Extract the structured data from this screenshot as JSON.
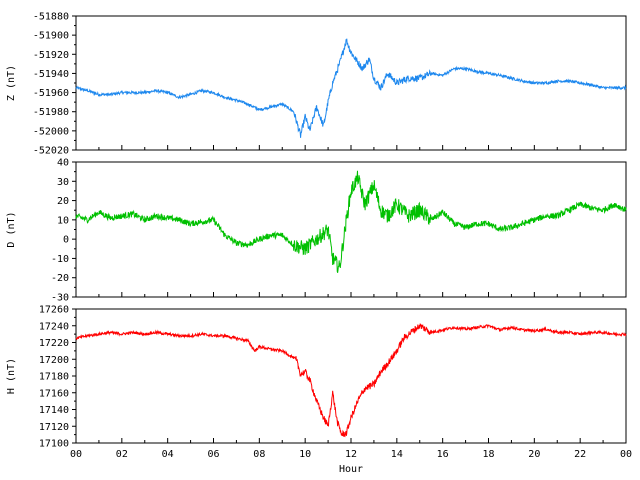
{
  "chart_data": [
    {
      "type": "line",
      "ylabel": "Z (nT)",
      "ylim": [
        -52020,
        -51880
      ],
      "yticks": [
        -51880,
        -51900,
        -51920,
        -51940,
        -51960,
        -51980,
        -52000,
        -52020
      ],
      "color": "#1e88ee",
      "series": [
        {
          "x": [
            0,
            0.5,
            1,
            1.5,
            2,
            2.5,
            3,
            3.5,
            4,
            4.5,
            5,
            5.5,
            6,
            6.5,
            7,
            7.5,
            8,
            8.5,
            9,
            9.5,
            9.8,
            10,
            10.2,
            10.5,
            10.8,
            11,
            11.2,
            11.5,
            11.8,
            12,
            12.2,
            12.5,
            12.8,
            13,
            13.3,
            13.6,
            14,
            14.5,
            15,
            15.5,
            16,
            16.5,
            17,
            17.5,
            18,
            18.5,
            19,
            19.5,
            20,
            20.5,
            21,
            21.5,
            22,
            22.5,
            23,
            23.5,
            24
          ],
          "y": [
            -51955,
            -51958,
            -51962,
            -51962,
            -51960,
            -51960,
            -51960,
            -51958,
            -51960,
            -51965,
            -51962,
            -51958,
            -51960,
            -51965,
            -51968,
            -51972,
            -51978,
            -51975,
            -51972,
            -51980,
            -52005,
            -51985,
            -52000,
            -51975,
            -51995,
            -51970,
            -51950,
            -51930,
            -51905,
            -51918,
            -51925,
            -51935,
            -51925,
            -51945,
            -51955,
            -51940,
            -51950,
            -51945,
            -51945,
            -51940,
            -51942,
            -51935,
            -51935,
            -51938,
            -51940,
            -51942,
            -51945,
            -51948,
            -51950,
            -51950,
            -51948,
            -51948,
            -51950,
            -51952,
            -51955,
            -51955,
            -51955
          ]
        }
      ]
    },
    {
      "type": "line",
      "ylabel": "D (nT)",
      "ylim": [
        -30,
        40
      ],
      "yticks": [
        40,
        30,
        20,
        10,
        0,
        -10,
        -20,
        -30
      ],
      "color": "#00c000",
      "series": [
        {
          "x": [
            0,
            0.5,
            1,
            1.5,
            2,
            2.5,
            3,
            3.5,
            4,
            4.5,
            5,
            5.5,
            6,
            6.5,
            7,
            7.5,
            8,
            8.5,
            9,
            9.5,
            10,
            10.5,
            11,
            11.2,
            11.5,
            11.8,
            12,
            12.3,
            12.6,
            13,
            13.3,
            13.6,
            14,
            14.5,
            15,
            15.5,
            16,
            16.5,
            17,
            17.5,
            18,
            18.5,
            19,
            19.5,
            20,
            20.5,
            21,
            21.5,
            22,
            22.5,
            23,
            23.5,
            24
          ],
          "y": [
            12,
            10,
            14,
            11,
            12,
            13,
            10,
            12,
            11,
            10,
            8,
            9,
            10,
            2,
            -2,
            -3,
            0,
            2,
            2,
            -3,
            -5,
            0,
            5,
            -10,
            -15,
            10,
            25,
            32,
            18,
            28,
            15,
            12,
            18,
            12,
            15,
            10,
            14,
            8,
            6,
            8,
            8,
            5,
            6,
            8,
            10,
            12,
            12,
            15,
            18,
            16,
            15,
            18,
            15
          ]
        }
      ]
    },
    {
      "type": "line",
      "ylabel": "H (nT)",
      "xlabel": "Hour",
      "ylim": [
        17100,
        17260
      ],
      "yticks": [
        17260,
        17240,
        17220,
        17200,
        17180,
        17160,
        17140,
        17120,
        17100
      ],
      "xticks": [
        "00",
        "02",
        "04",
        "06",
        "08",
        "10",
        "12",
        "14",
        "16",
        "18",
        "20",
        "22",
        "00"
      ],
      "color": "#ff0000",
      "series": [
        {
          "x": [
            0,
            0.5,
            1,
            1.5,
            2,
            2.5,
            3,
            3.5,
            4,
            4.5,
            5,
            5.5,
            6,
            6.5,
            7,
            7.5,
            7.8,
            8,
            8.5,
            9,
            9.3,
            9.6,
            9.8,
            10,
            10.2,
            10.5,
            10.8,
            11,
            11.2,
            11.4,
            11.6,
            11.8,
            12,
            12.3,
            12.6,
            13,
            13.3,
            13.6,
            14,
            14.3,
            14.6,
            15,
            15.5,
            16,
            16.5,
            17,
            17.5,
            18,
            18.5,
            19,
            19.5,
            20,
            20.5,
            21,
            21.5,
            22,
            22.5,
            23,
            23.5,
            24
          ],
          "y": [
            17225,
            17228,
            17230,
            17232,
            17230,
            17232,
            17230,
            17232,
            17230,
            17228,
            17228,
            17230,
            17228,
            17228,
            17225,
            17222,
            17210,
            17215,
            17212,
            17210,
            17205,
            17200,
            17182,
            17185,
            17175,
            17150,
            17130,
            17120,
            17160,
            17125,
            17110,
            17112,
            17130,
            17150,
            17165,
            17170,
            17185,
            17195,
            17210,
            17225,
            17232,
            17240,
            17232,
            17235,
            17238,
            17236,
            17238,
            17240,
            17235,
            17238,
            17235,
            17234,
            17236,
            17232,
            17232,
            17230,
            17232,
            17232,
            17230,
            17230
          ]
        }
      ]
    }
  ]
}
